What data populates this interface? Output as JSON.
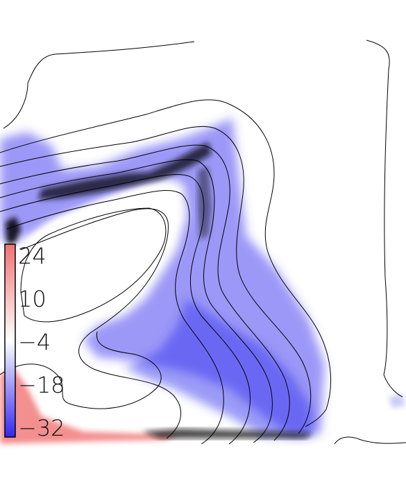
{
  "chart_data": {
    "type": "heatmap",
    "title": "",
    "xlabel": "",
    "ylabel": "",
    "colorbar": {
      "ticks": [
        24,
        10,
        -4,
        -18,
        -32
      ],
      "tick_labels": [
        "24",
        "10",
        "−4",
        "−18",
        "−32"
      ],
      "range": [
        -32,
        24
      ],
      "colormap": [
        "#3a2cf2",
        "#ffffff",
        "#f07a7a"
      ]
    },
    "overlay": "black contour lines",
    "grid": false,
    "legend": "colorbar at left"
  },
  "colors": {
    "negative": "#2b2bf0",
    "positive": "#f06a6a",
    "extreme": "#101010",
    "contour": "#000000"
  }
}
